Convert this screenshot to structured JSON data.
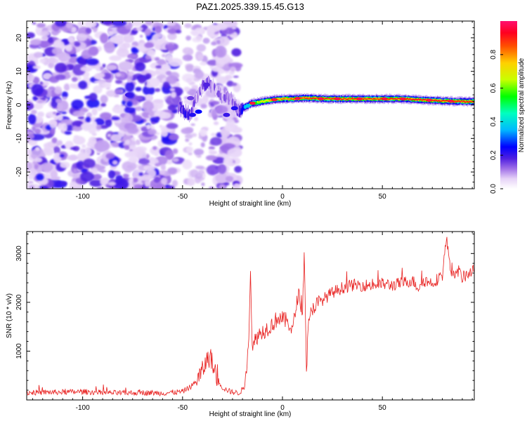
{
  "chart_data": [
    {
      "type": "heatmap",
      "title": "PAZ1.2025.339.15.45.G13",
      "xlabel": "Height of straight line (km)",
      "ylabel": "Frequency (Hz)",
      "xlim": [
        -128,
        96
      ],
      "ylim": [
        -25,
        25
      ],
      "xticks": [
        -100,
        -50,
        0,
        50
      ],
      "yticks": [
        -20,
        -10,
        0,
        10,
        20
      ],
      "colorbar": {
        "label": "Normalized spectral amplitude",
        "range": [
          0,
          1
        ],
        "ticks": [
          0.0,
          0.2,
          0.4,
          0.6,
          0.8
        ],
        "tick_labels": [
          "0.0",
          "0.2",
          "0.4",
          "0.6",
          "0.8"
        ],
        "colormap": "rainbow"
      },
      "features": {
        "noise_region_km": [
          -128,
          -22
        ],
        "signal_track": {
          "x": [
            -52,
            -49,
            -46,
            -43,
            -40,
            -37,
            -34,
            -31,
            -28,
            -25,
            -22,
            -20,
            -15,
            -10,
            -5,
            0,
            5,
            10,
            15,
            20,
            30,
            40,
            50,
            60,
            70,
            80,
            90,
            96
          ],
          "freq": [
            -0.5,
            -2.0,
            -3.0,
            2.5,
            5.5,
            7.0,
            5.0,
            3.0,
            2.5,
            1.0,
            -2.0,
            -1.0,
            0.5,
            1.0,
            1.5,
            1.8,
            1.8,
            2.0,
            2.0,
            1.8,
            1.8,
            1.8,
            1.8,
            1.8,
            1.5,
            1.2,
            1.0,
            1.0
          ],
          "amp": [
            0.15,
            0.2,
            0.15,
            0.1,
            0.1,
            0.15,
            0.1,
            0.1,
            0.1,
            0.1,
            0.15,
            0.25,
            0.5,
            0.7,
            0.75,
            0.8,
            0.85,
            0.85,
            0.9,
            0.9,
            0.9,
            0.9,
            0.9,
            0.95,
            0.95,
            0.95,
            0.95,
            0.95
          ]
        }
      }
    },
    {
      "type": "line",
      "xlabel": "Height of straight line (km)",
      "ylabel": "SNR (10 * v/v)",
      "xlim": [
        -128,
        96
      ],
      "ylim": [
        0,
        3450
      ],
      "xticks": [
        -100,
        -50,
        0,
        50
      ],
      "yticks": [
        1000,
        2000,
        3000
      ],
      "series": [
        {
          "name": "SNR",
          "color": "#e8201f",
          "x": [
            -128,
            -110,
            -100,
            -90,
            -80,
            -70,
            -60,
            -50,
            -45,
            -42,
            -40,
            -38,
            -36,
            -34,
            -30,
            -26,
            -22,
            -19,
            -17,
            -16,
            -15,
            -13,
            -10,
            -5,
            -2,
            0,
            3,
            5,
            8,
            10,
            11,
            12,
            13,
            15,
            20,
            25,
            30,
            35,
            40,
            45,
            50,
            55,
            60,
            65,
            68,
            70,
            75,
            80,
            82,
            85,
            88,
            90,
            93,
            96
          ],
          "y": [
            150,
            160,
            170,
            150,
            140,
            150,
            140,
            170,
            300,
            450,
            600,
            800,
            900,
            550,
            250,
            170,
            140,
            250,
            1200,
            2600,
            1000,
            1300,
            1400,
            1550,
            1700,
            1650,
            1600,
            1400,
            2200,
            1800,
            3100,
            600,
            1500,
            1900,
            2050,
            2200,
            2300,
            2350,
            2350,
            2350,
            2380,
            2350,
            2400,
            2450,
            2300,
            2450,
            2400,
            2550,
            3300,
            2500,
            2650,
            2500,
            2600,
            2650
          ]
        }
      ]
    }
  ]
}
